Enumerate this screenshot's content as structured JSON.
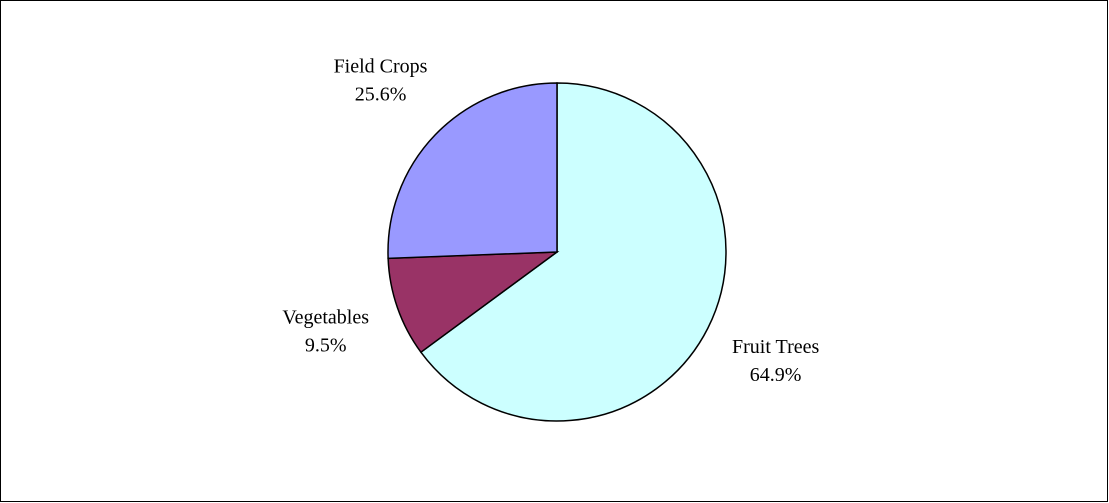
{
  "chart_data": {
    "type": "pie",
    "categories": [
      "Fruit Trees",
      "Vegetables",
      "Field Crops"
    ],
    "values": [
      64.9,
      9.5,
      25.6
    ],
    "value_labels": [
      "64.9%",
      "9.5%",
      "25.6%"
    ],
    "colors": [
      "#ccffff",
      "#993366",
      "#9999ff"
    ]
  }
}
